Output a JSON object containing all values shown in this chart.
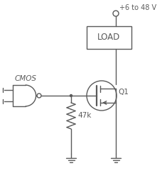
{
  "bg_color": "#ffffff",
  "line_color": "#5a5a5a",
  "text_color": "#5a5a5a",
  "font_size": 7.5,
  "supply_label": "+6 to 48 V",
  "load_label": "LOAD",
  "cmos_label": "CMOS",
  "resistor_label": "47k",
  "transistor_label": "Q1",
  "figsize": [
    2.35,
    2.47
  ],
  "dpi": 100,
  "xlim": [
    0,
    235
  ],
  "ylim": [
    0,
    247
  ]
}
